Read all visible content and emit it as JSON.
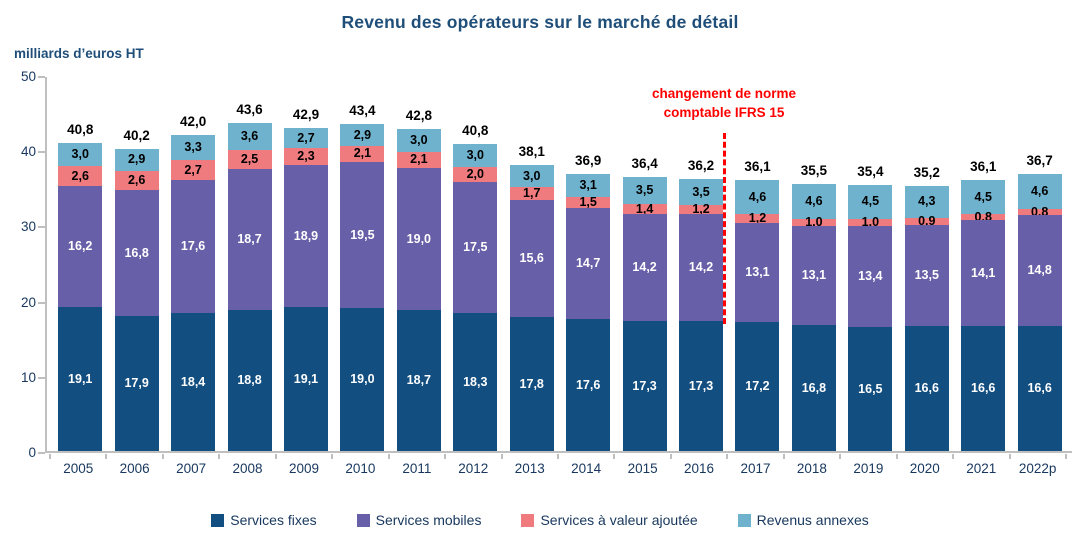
{
  "title": "Revenu des opérateurs sur le marché de détail",
  "y_axis_unit": "milliards d’euros HT",
  "annotation": {
    "line1": "changement de norme",
    "line2": "comptable IFRS 15",
    "color": "#FF0000"
  },
  "colors": {
    "title": "#1F4E79",
    "axis_text": "#17375E",
    "axis_line": "#BFBFBF",
    "total_label": "#000000"
  },
  "chart_data": {
    "type": "bar",
    "stacked": true,
    "title": "Revenu des opérateurs sur le marché de détail",
    "ylabel": "milliards d’euros HT",
    "xlabel": "",
    "ylim": [
      0,
      50
    ],
    "yticks": [
      0,
      10,
      20,
      30,
      40,
      50
    ],
    "grid": false,
    "legend_position": "bottom",
    "decimal_separator": ",",
    "categories": [
      "2005",
      "2006",
      "2007",
      "2008",
      "2009",
      "2010",
      "2011",
      "2012",
      "2013",
      "2014",
      "2015",
      "2016",
      "2017",
      "2018",
      "2019",
      "2020",
      "2021",
      "2022p"
    ],
    "series": [
      {
        "name": "Services fixes",
        "color": "#124E80",
        "label_color": "#FFFFFF",
        "values": [
          19.1,
          17.9,
          18.4,
          18.8,
          19.1,
          19.0,
          18.7,
          18.3,
          17.8,
          17.6,
          17.3,
          17.3,
          17.2,
          16.8,
          16.5,
          16.6,
          16.6,
          16.6
        ]
      },
      {
        "name": "Services mobiles",
        "color": "#675FA7",
        "label_color": "#FFFFFF",
        "values": [
          16.2,
          16.8,
          17.6,
          18.7,
          18.9,
          19.5,
          19.0,
          17.5,
          15.6,
          14.7,
          14.2,
          14.2,
          13.1,
          13.1,
          13.4,
          13.5,
          14.1,
          14.8
        ]
      },
      {
        "name": "Services à valeur ajoutée",
        "color": "#EF7B7E",
        "label_color": "#000000",
        "values": [
          2.6,
          2.6,
          2.7,
          2.5,
          2.3,
          2.1,
          2.1,
          2.0,
          1.7,
          1.5,
          1.4,
          1.2,
          1.2,
          1.0,
          1.0,
          0.9,
          0.8,
          0.8
        ]
      },
      {
        "name": "Revenus annexes",
        "color": "#6FB2CE",
        "label_color": "#000000",
        "values": [
          3.0,
          2.9,
          3.3,
          3.6,
          2.7,
          2.9,
          3.0,
          3.0,
          3.0,
          3.1,
          3.5,
          3.5,
          4.6,
          4.6,
          4.5,
          4.3,
          4.5,
          4.6
        ]
      }
    ],
    "totals": [
      40.8,
      40.2,
      42.0,
      43.6,
      42.9,
      43.4,
      42.8,
      40.8,
      38.1,
      36.9,
      36.4,
      36.2,
      36.1,
      35.5,
      35.4,
      35.2,
      36.1,
      36.7
    ],
    "divider_after_category": "2016"
  }
}
